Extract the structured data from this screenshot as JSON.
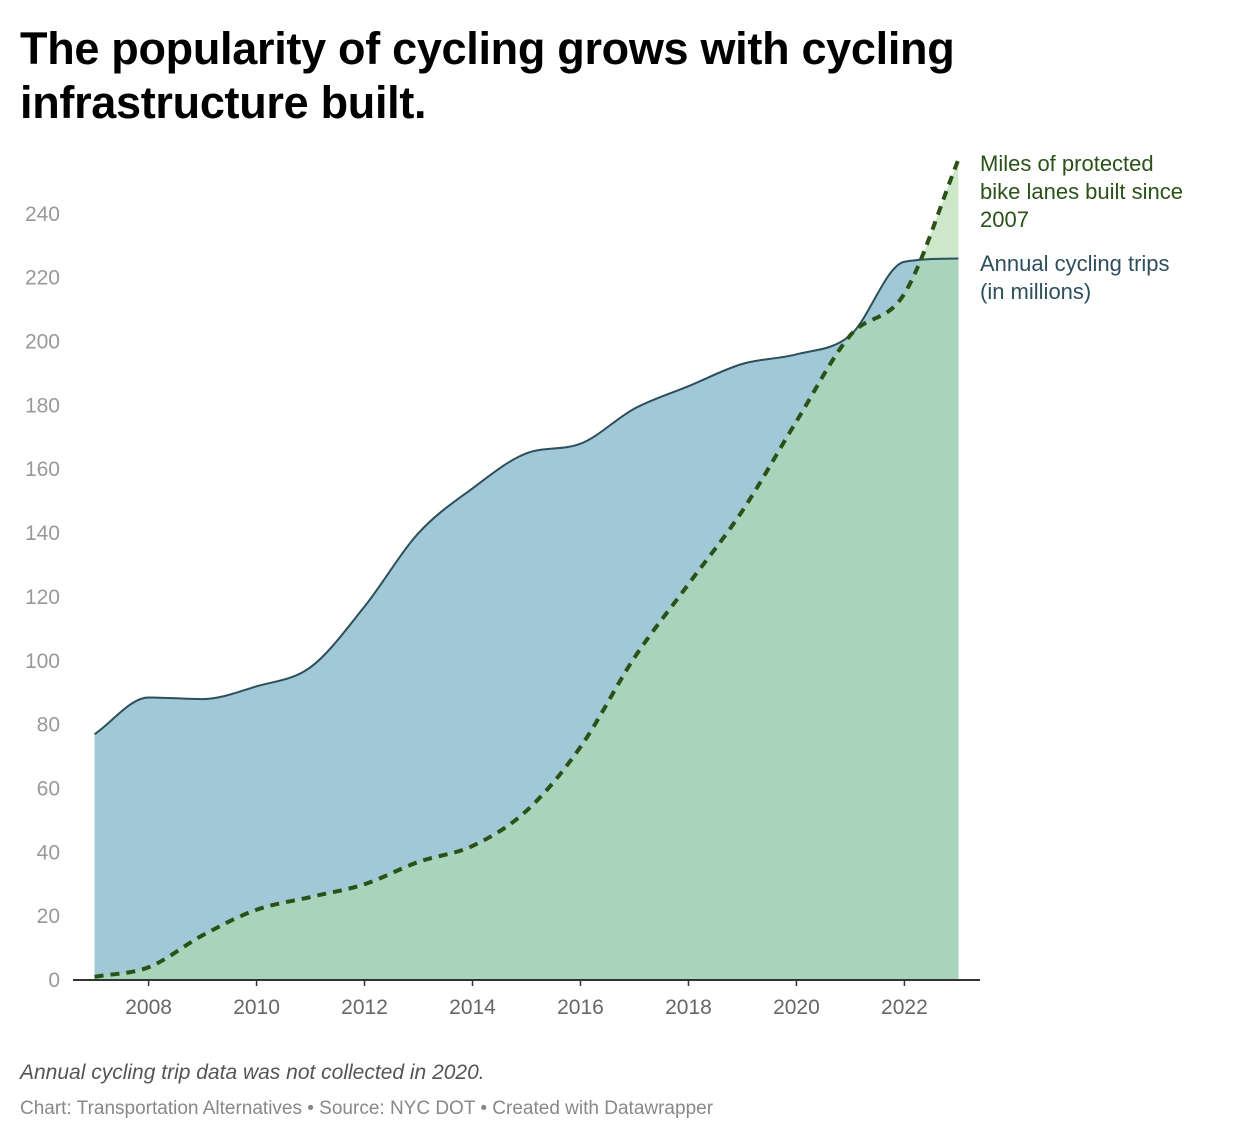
{
  "title": "The popularity of cycling grows with cycling infrastructure built.",
  "note": "Annual cycling trip data was not collected in 2020.",
  "credit": "Chart: Transportation Alternatives • Source: NYC DOT • Created with Datawrapper",
  "colors": {
    "trips_fill": "#a1c8d6",
    "trips_line": "#2d4f5c",
    "lanes_fill": "#a8d4bc",
    "lanes_fill_extra": "#cde8c8",
    "lanes_line": "#2a5218",
    "axis": "#333333"
  },
  "chart_data": {
    "type": "area",
    "x": [
      2007,
      2008,
      2009,
      2010,
      2011,
      2012,
      2013,
      2014,
      2015,
      2016,
      2017,
      2018,
      2019,
      2020,
      2021,
      2022,
      2023
    ],
    "xticks": [
      "2008",
      "2010",
      "2012",
      "2014",
      "2016",
      "2018",
      "2020",
      "2022"
    ],
    "yticks": [
      "0",
      "20",
      "40",
      "60",
      "80",
      "100",
      "120",
      "140",
      "160",
      "180",
      "200",
      "220",
      "240"
    ],
    "ylim": [
      0,
      260
    ],
    "xlim": [
      2006.6,
      2023.4
    ],
    "grid": false,
    "series": [
      {
        "name": "Annual cycling trips (in millions)",
        "label_lines": [
          "Annual cycling trips",
          "(in millions)"
        ],
        "values": [
          77,
          88.5,
          88,
          92,
          98,
          117,
          140,
          154,
          165,
          168,
          179,
          186,
          193,
          196,
          202,
          225,
          226
        ]
      },
      {
        "name": "Miles of protected bike lanes built since 2007",
        "label_lines": [
          "Miles of protected",
          "bike lanes built since",
          "2007"
        ],
        "values": [
          1,
          4,
          14,
          22,
          26,
          30,
          37,
          42,
          53,
          73,
          101,
          124,
          147,
          175,
          202,
          215,
          257
        ]
      }
    ]
  }
}
